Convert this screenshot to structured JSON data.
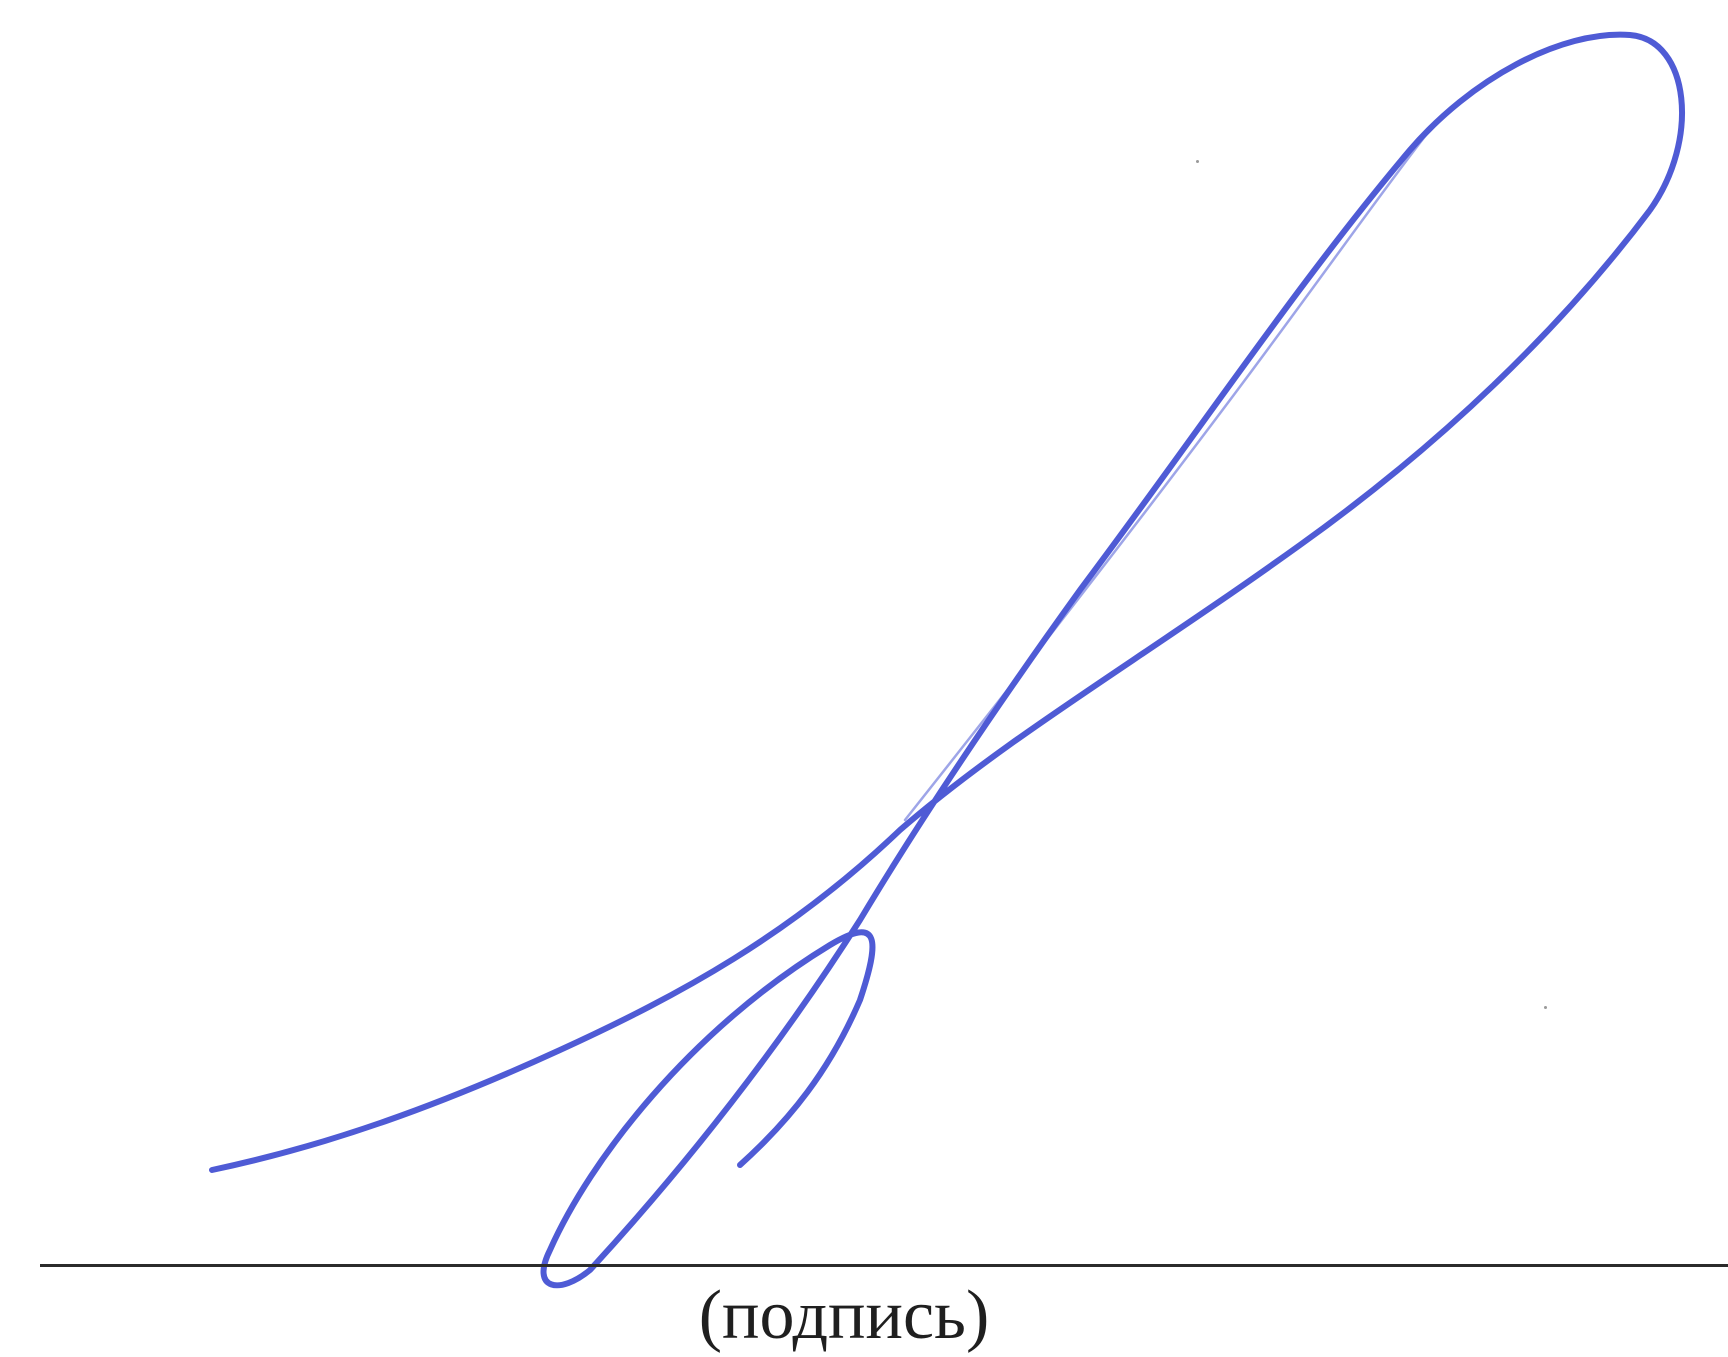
{
  "document": {
    "signature_caption": "(подпись)",
    "ink_color": "#4f5bd5"
  }
}
